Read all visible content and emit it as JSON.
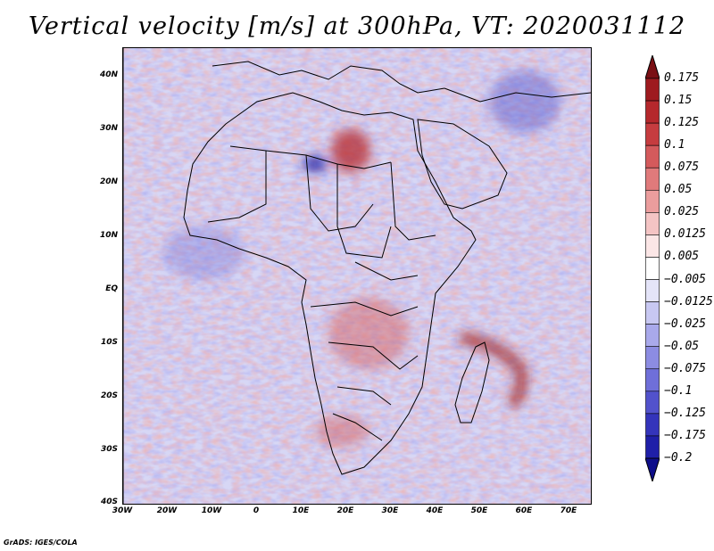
{
  "title": "Vertical velocity [m/s] at 300hPa, VT: 2020031112",
  "footer": "GrADS: IGES/COLA",
  "map": {
    "region": "Africa",
    "lon_range": [
      -30,
      75
    ],
    "lat_range": [
      -40,
      45
    ],
    "y_ticks": [
      "40N",
      "30N",
      "20N",
      "10N",
      "EQ",
      "10S",
      "20S",
      "30S",
      "40S"
    ],
    "x_ticks": [
      "30W",
      "20W",
      "10W",
      "0",
      "10E",
      "20E",
      "30E",
      "40E",
      "50E",
      "60E",
      "70E"
    ]
  },
  "colorbar": {
    "labels": [
      "0.175",
      "0.15",
      "0.125",
      "0.1",
      "0.075",
      "0.05",
      "0.025",
      "0.0125",
      "0.005",
      "−0.005",
      "−0.0125",
      "−0.025",
      "−0.05",
      "−0.075",
      "−0.1",
      "−0.125",
      "−0.175",
      "−0.2"
    ],
    "colors": [
      "#7a0f14",
      "#9e1a1f",
      "#b5282c",
      "#c63c3f",
      "#d45a5c",
      "#e07a7b",
      "#eb9d9d",
      "#f4c4c4",
      "#fbe6e6",
      "#ffffff",
      "#e4e4f8",
      "#c8c8f2",
      "#a9a9eb",
      "#8c8ce2",
      "#6f6fd9",
      "#5252cc",
      "#3434bb",
      "#1f1fa8",
      "#0e0e8a"
    ]
  }
}
